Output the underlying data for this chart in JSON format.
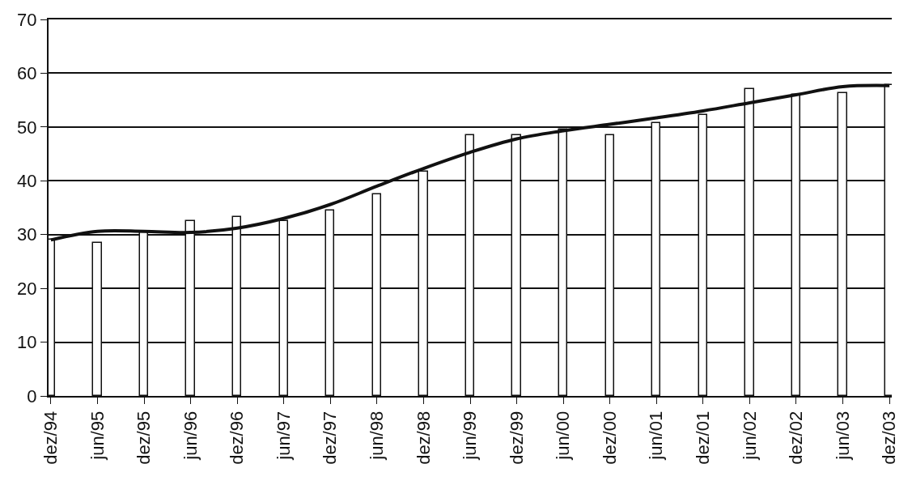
{
  "chart_data": {
    "type": "bar",
    "categories": [
      "dez/94",
      "jun/95",
      "dez/95",
      "jun/96",
      "dez/96",
      "jun/97",
      "dez/97",
      "jun/98",
      "dez/98",
      "jun/99",
      "dez/99",
      "jun/00",
      "dez/00",
      "jun/01",
      "dez/01",
      "jun/02",
      "dez/02",
      "jun/03",
      "dez/03"
    ],
    "series": [
      {
        "color": "#ffffff",
        "values": [
          29,
          28.5,
          30.5,
          32.5,
          33.3,
          32.5,
          34.5,
          37.5,
          41.7,
          48.5,
          48.5,
          49.5,
          48.5,
          50.8,
          52.3,
          57,
          56,
          56.3,
          57.8
        ]
      },
      {
        "type": "line",
        "color": "#111111",
        "values": [
          29,
          30.6,
          30.6,
          30.4,
          31.2,
          33,
          35.6,
          39,
          42.3,
          45.3,
          47.8,
          49.3,
          50.5,
          51.7,
          53,
          54.5,
          56,
          57.5,
          57.7
        ]
      }
    ],
    "ylim": [
      0,
      70
    ],
    "yticks": [
      0,
      10,
      20,
      30,
      40,
      50,
      60,
      70
    ],
    "grid": "y",
    "legend": false,
    "marker": "none",
    "line_style": "solid"
  }
}
